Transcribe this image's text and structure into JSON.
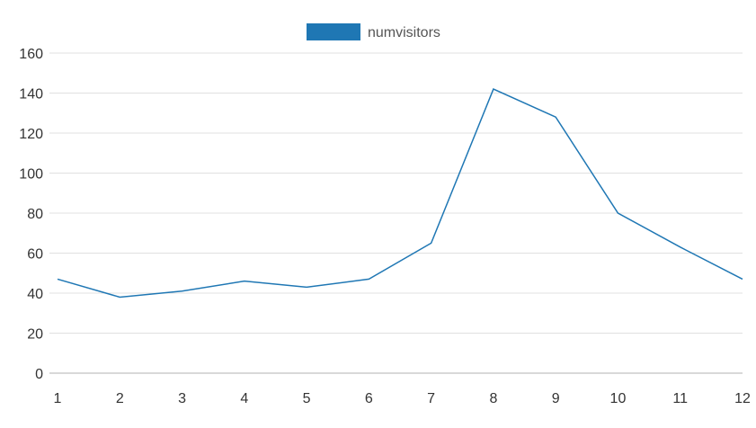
{
  "chart_data": {
    "type": "line",
    "x": [
      1,
      2,
      3,
      4,
      5,
      6,
      7,
      8,
      9,
      10,
      11,
      12
    ],
    "series": [
      {
        "name": "numvisitors",
        "values": [
          47,
          38,
          41,
          46,
          43,
          47,
          65,
          142,
          128,
          80,
          63,
          47
        ]
      }
    ],
    "ylim": [
      0,
      160
    ],
    "yticks": [
      0,
      20,
      40,
      60,
      80,
      100,
      120,
      140,
      160
    ],
    "xticks": [
      "1",
      "2",
      "3",
      "4",
      "5",
      "6",
      "7",
      "8",
      "9",
      "10",
      "11",
      "12"
    ],
    "grid": true,
    "legend_position": "top-center",
    "colors": {
      "series": "#1f77b4",
      "grid": "#e0e0e0",
      "axis": "#b0b0b0",
      "text": "#333333",
      "legend_text": "#555555"
    }
  }
}
